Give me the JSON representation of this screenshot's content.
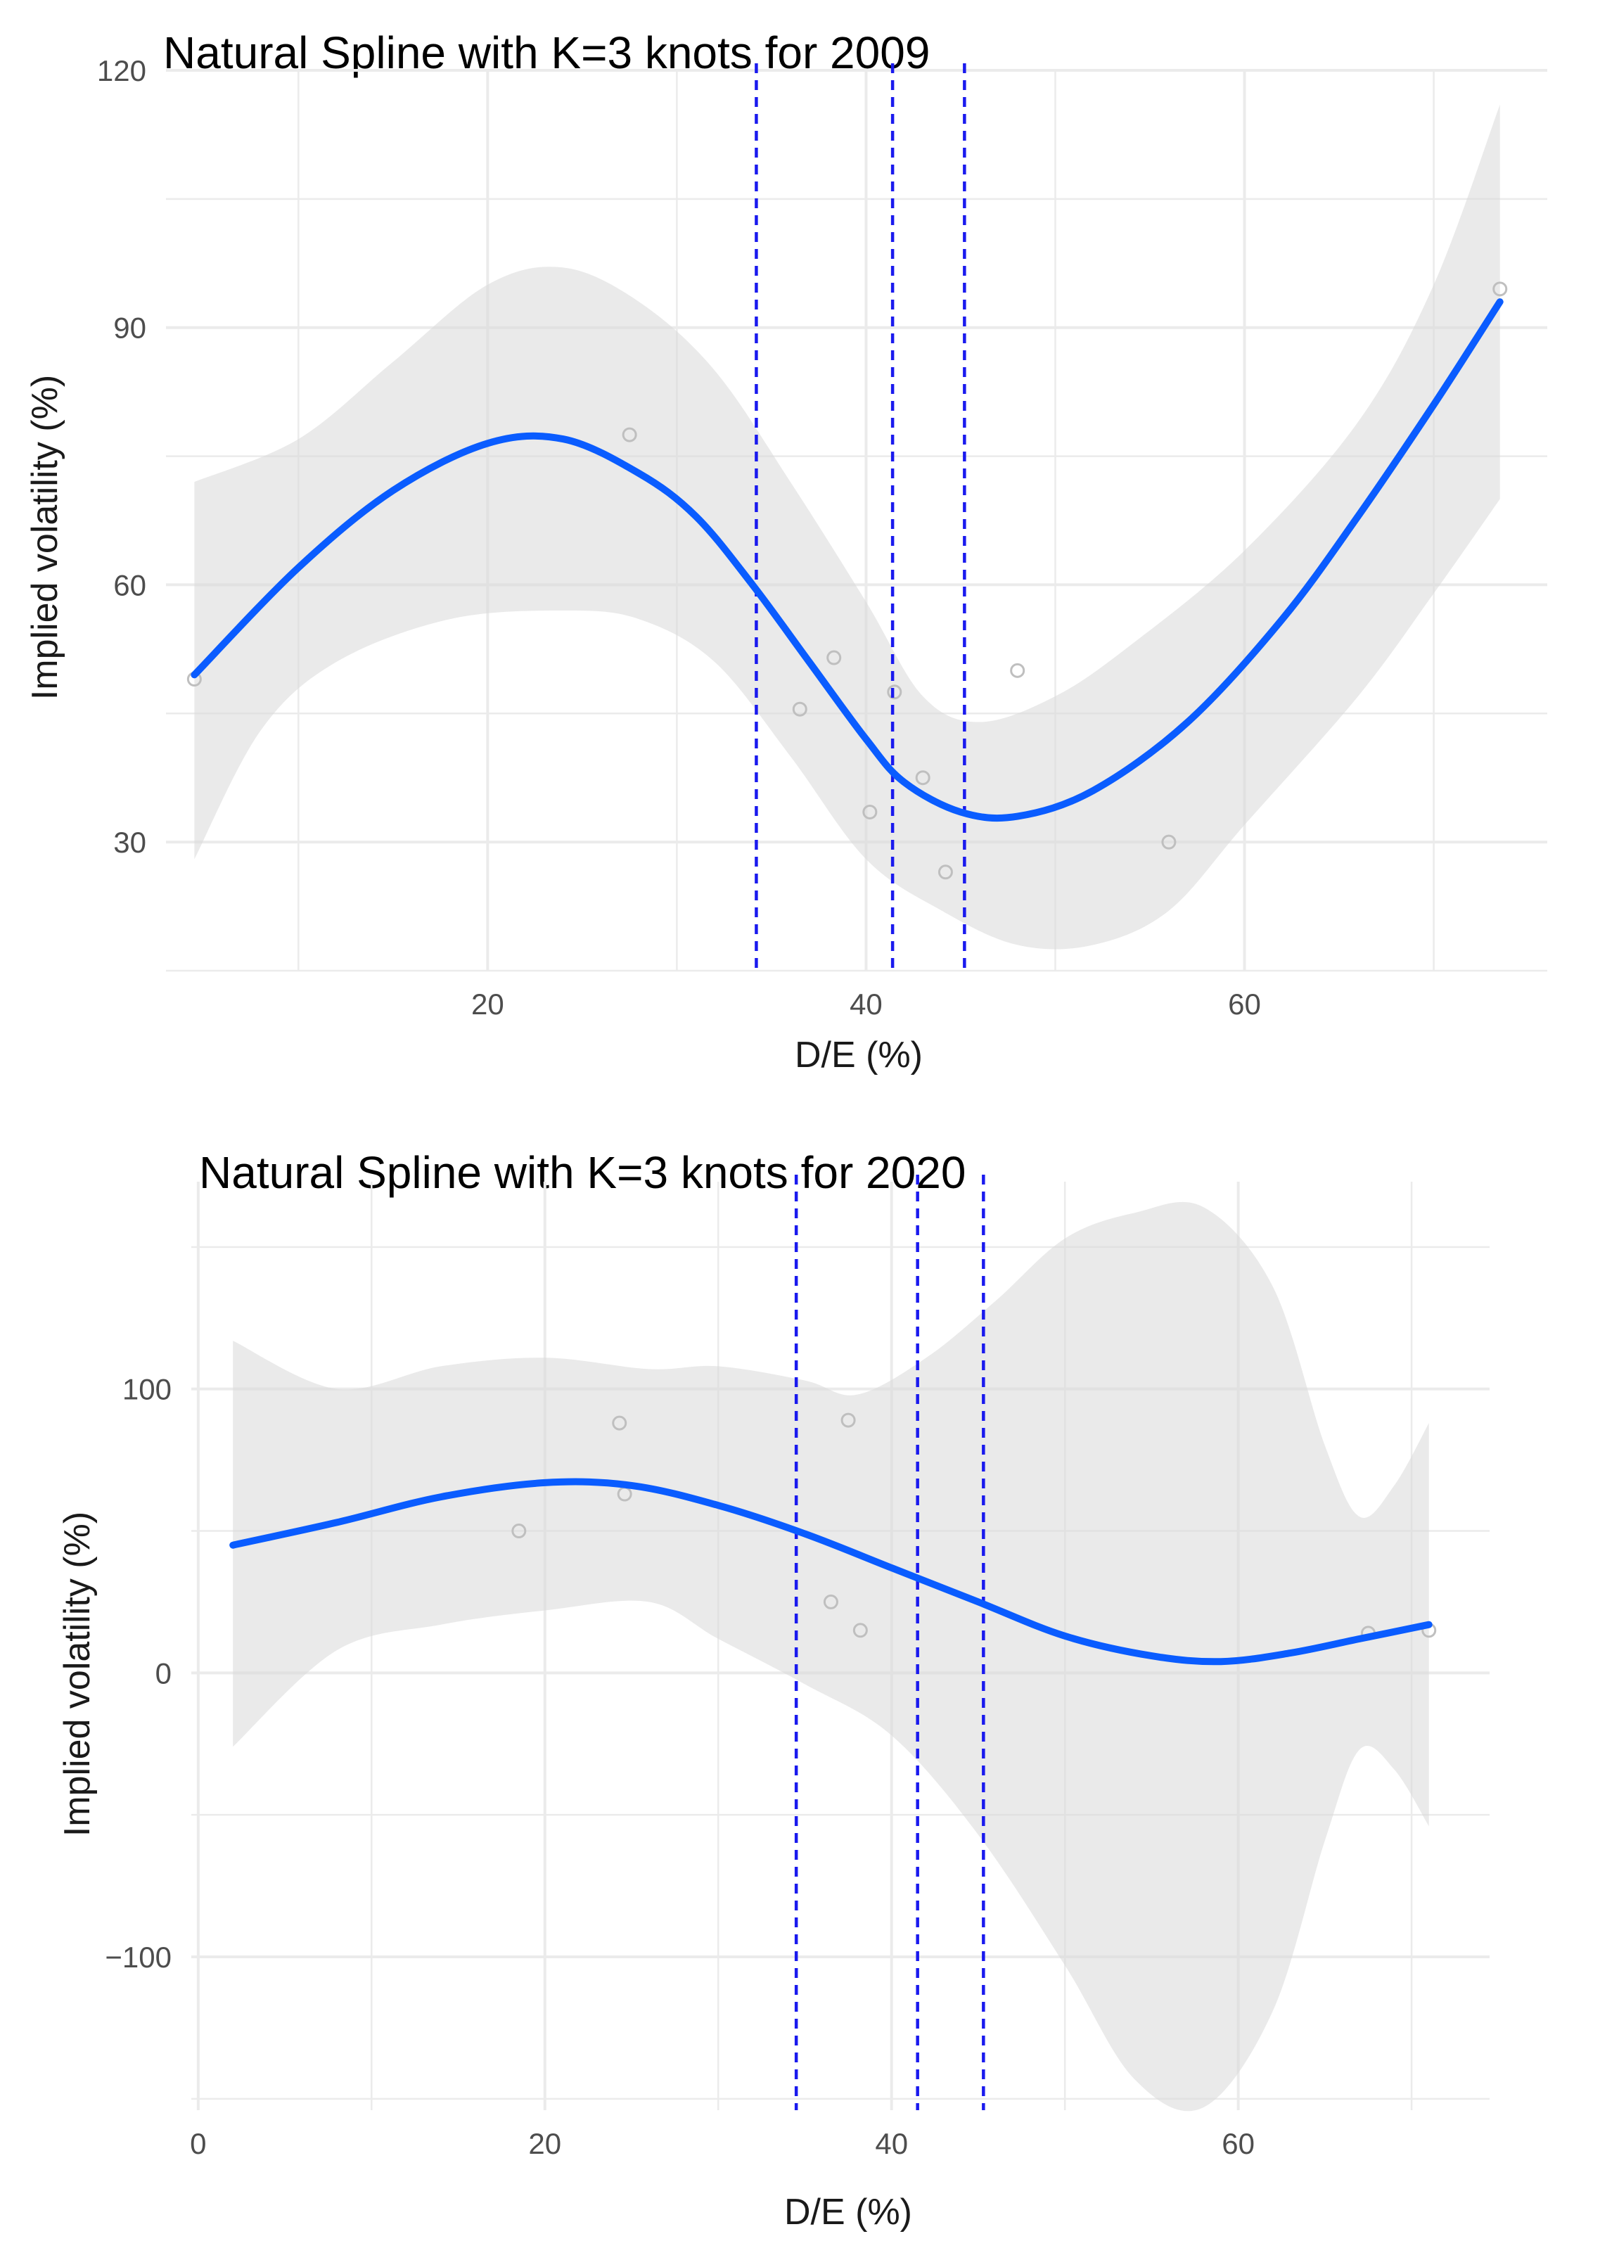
{
  "chart_data": [
    {
      "type": "line",
      "title": "Natural Spline with K=3 knots for 2009",
      "xlabel": "D/E (%)",
      "ylabel": "Implied volatility (%)",
      "xlim": [
        3,
        76
      ],
      "ylim": [
        15,
        120
      ],
      "x_ticks": [
        20,
        40,
        60
      ],
      "y_ticks": [
        30,
        60,
        90,
        120
      ],
      "grid": true,
      "knots": [
        34.2,
        41.4,
        45.2
      ],
      "fit": {
        "x": [
          4.5,
          10,
          15,
          20,
          24,
          28,
          31,
          34,
          37,
          40,
          42,
          45,
          48,
          52,
          57,
          62,
          66,
          70,
          73.5
        ],
        "y": [
          49.5,
          62,
          71,
          76.5,
          77,
          73,
          68,
          60,
          51,
          42,
          37,
          33.5,
          33,
          36,
          44,
          56,
          68,
          81,
          93
        ]
      },
      "ci_upper": {
        "x": [
          4.5,
          10,
          15,
          20,
          24,
          28,
          32,
          36,
          40,
          43,
          46,
          50,
          54,
          60,
          66,
          70,
          73.5
        ],
        "y": [
          72,
          77,
          86,
          95,
          97,
          93,
          85,
          72,
          58,
          47,
          44,
          47,
          53,
          64,
          79,
          95,
          116
        ]
      },
      "ci_lower": {
        "x": [
          4.5,
          8,
          12,
          18,
          24,
          28,
          32,
          36,
          40,
          44,
          48,
          52,
          56,
          60,
          66,
          70,
          73.5
        ],
        "y": [
          28,
          43,
          51,
          56,
          57,
          56,
          51,
          40,
          28,
          22,
          18,
          18,
          22,
          32,
          47,
          59,
          70
        ]
      },
      "points": {
        "x": [
          4.5,
          27.5,
          36.5,
          38.3,
          40.2,
          41.5,
          43,
          44.2,
          48,
          56,
          73.5
        ],
        "y": [
          49,
          77.5,
          45.5,
          51.5,
          33.5,
          47.5,
          37.5,
          26.5,
          50,
          30,
          94.5
        ]
      }
    },
    {
      "type": "line",
      "title": "Natural Spline with K=3 knots for 2020",
      "xlabel": "D/E (%)",
      "ylabel": "Implied volatility (%)",
      "xlim": [
        -0.4,
        74.5
      ],
      "ylim": [
        -154,
        173
      ],
      "x_ticks": [
        0,
        20,
        40,
        60
      ],
      "y_ticks": [
        -100,
        0,
        100
      ],
      "grid": true,
      "knots": [
        34.5,
        41.5,
        45.3
      ],
      "fit": {
        "x": [
          2,
          8,
          14,
          20,
          25,
          30,
          35,
          40,
          45,
          50,
          55,
          59,
          63,
          67,
          71
        ],
        "y": [
          45,
          53,
          62,
          67,
          66,
          59,
          49,
          37,
          25,
          13,
          6,
          4,
          7,
          12,
          17
        ]
      },
      "ci_upper": {
        "x": [
          2,
          8,
          14,
          20,
          26,
          30,
          35,
          38,
          42,
          46,
          50,
          54,
          58,
          62,
          65,
          67,
          69,
          71
        ],
        "y": [
          117,
          100,
          108,
          111,
          107,
          108,
          103,
          98,
          111,
          131,
          153,
          162,
          164,
          136,
          80,
          55,
          66,
          88
        ]
      },
      "ci_lower": {
        "x": [
          2,
          8,
          14,
          20,
          26,
          30,
          35,
          40,
          45,
          50,
          54,
          58,
          62,
          65,
          67,
          69,
          71
        ],
        "y": [
          -26,
          8,
          17,
          22,
          25,
          12,
          -4,
          -22,
          -57,
          -103,
          -143,
          -153,
          -119,
          -59,
          -27,
          -34,
          -54
        ]
      },
      "points": {
        "x": [
          18.5,
          24.3,
          24.6,
          36.5,
          37.5,
          38.2,
          67.5,
          71
        ],
        "y": [
          50,
          88,
          63,
          25,
          89,
          15,
          14,
          15
        ]
      }
    }
  ]
}
